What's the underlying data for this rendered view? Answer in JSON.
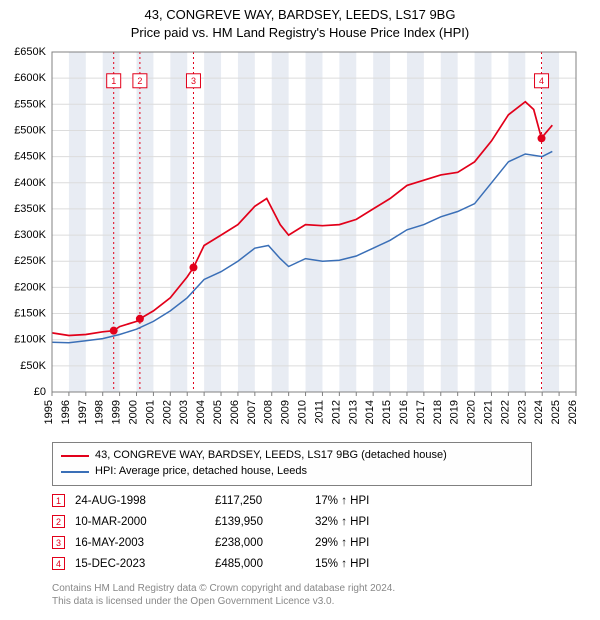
{
  "title_line1": "43, CONGREVE WAY, BARDSEY, LEEDS, LS17 9BG",
  "title_line2": "Price paid vs. HM Land Registry's House Price Index (HPI)",
  "chart": {
    "type": "line",
    "background_color": "#ffffff",
    "plot_border_color": "#808080",
    "grid_color": "#dcdcdc",
    "shade_band_color": "#e8ecf3",
    "axis_text_color": "#000000",
    "axis_fontsize": 11,
    "y": {
      "min": 0,
      "max": 650000,
      "tick_step": 50000,
      "labels": [
        "£0",
        "£50K",
        "£100K",
        "£150K",
        "£200K",
        "£250K",
        "£300K",
        "£350K",
        "£400K",
        "£450K",
        "£500K",
        "£550K",
        "£600K",
        "£650K"
      ]
    },
    "x": {
      "min": 1995,
      "max": 2026,
      "tick_step": 1,
      "labels": [
        "1995",
        "1996",
        "1997",
        "1998",
        "1999",
        "2000",
        "2001",
        "2002",
        "2003",
        "2004",
        "2005",
        "2006",
        "2007",
        "2008",
        "2009",
        "2010",
        "2011",
        "2012",
        "2013",
        "2014",
        "2015",
        "2016",
        "2017",
        "2018",
        "2019",
        "2020",
        "2021",
        "2022",
        "2023",
        "2024",
        "2025",
        "2026"
      ]
    },
    "series": [
      {
        "name": "property",
        "color": "#e2001a",
        "line_width": 1.7,
        "points": [
          [
            1995.0,
            113000
          ],
          [
            1996.0,
            108000
          ],
          [
            1997.0,
            110000
          ],
          [
            1998.0,
            115000
          ],
          [
            1998.65,
            117250
          ],
          [
            1999.0,
            125000
          ],
          [
            2000.0,
            135000
          ],
          [
            2000.2,
            139950
          ],
          [
            2001.0,
            155000
          ],
          [
            2002.0,
            180000
          ],
          [
            2003.0,
            220000
          ],
          [
            2003.37,
            238000
          ],
          [
            2004.0,
            280000
          ],
          [
            2005.0,
            300000
          ],
          [
            2006.0,
            320000
          ],
          [
            2007.0,
            355000
          ],
          [
            2007.7,
            370000
          ],
          [
            2008.5,
            320000
          ],
          [
            2009.0,
            300000
          ],
          [
            2010.0,
            320000
          ],
          [
            2011.0,
            318000
          ],
          [
            2012.0,
            320000
          ],
          [
            2013.0,
            330000
          ],
          [
            2014.0,
            350000
          ],
          [
            2015.0,
            370000
          ],
          [
            2016.0,
            395000
          ],
          [
            2017.0,
            405000
          ],
          [
            2018.0,
            415000
          ],
          [
            2019.0,
            420000
          ],
          [
            2020.0,
            440000
          ],
          [
            2021.0,
            480000
          ],
          [
            2022.0,
            530000
          ],
          [
            2023.0,
            555000
          ],
          [
            2023.5,
            540000
          ],
          [
            2023.96,
            485000
          ],
          [
            2024.2,
            495000
          ],
          [
            2024.6,
            510000
          ]
        ]
      },
      {
        "name": "hpi",
        "color": "#3a6fb7",
        "line_width": 1.5,
        "points": [
          [
            1995.0,
            95000
          ],
          [
            1996.0,
            94000
          ],
          [
            1997.0,
            98000
          ],
          [
            1998.0,
            102000
          ],
          [
            1999.0,
            110000
          ],
          [
            2000.0,
            120000
          ],
          [
            2001.0,
            135000
          ],
          [
            2002.0,
            155000
          ],
          [
            2003.0,
            180000
          ],
          [
            2004.0,
            215000
          ],
          [
            2005.0,
            230000
          ],
          [
            2006.0,
            250000
          ],
          [
            2007.0,
            275000
          ],
          [
            2007.8,
            280000
          ],
          [
            2008.5,
            255000
          ],
          [
            2009.0,
            240000
          ],
          [
            2010.0,
            255000
          ],
          [
            2011.0,
            250000
          ],
          [
            2012.0,
            252000
          ],
          [
            2013.0,
            260000
          ],
          [
            2014.0,
            275000
          ],
          [
            2015.0,
            290000
          ],
          [
            2016.0,
            310000
          ],
          [
            2017.0,
            320000
          ],
          [
            2018.0,
            335000
          ],
          [
            2019.0,
            345000
          ],
          [
            2020.0,
            360000
          ],
          [
            2021.0,
            400000
          ],
          [
            2022.0,
            440000
          ],
          [
            2023.0,
            455000
          ],
          [
            2024.0,
            450000
          ],
          [
            2024.6,
            460000
          ]
        ]
      }
    ],
    "sale_markers": [
      {
        "n": "1",
        "x": 1998.65,
        "y": 117250,
        "color": "#e2001a",
        "label_y": 595000
      },
      {
        "n": "2",
        "x": 2000.2,
        "y": 139950,
        "color": "#e2001a",
        "label_y": 595000
      },
      {
        "n": "3",
        "x": 2003.37,
        "y": 238000,
        "color": "#e2001a",
        "label_y": 595000
      },
      {
        "n": "4",
        "x": 2023.96,
        "y": 485000,
        "color": "#e2001a",
        "label_y": 595000
      }
    ],
    "marker_dash_color": "#e2001a",
    "marker_box_border": "#e2001a",
    "marker_box_fill": "#ffffff",
    "marker_box_text": "#e2001a",
    "marker_fontsize": 9
  },
  "legend": {
    "items": [
      {
        "color": "#e2001a",
        "label": "43, CONGREVE WAY, BARDSEY, LEEDS, LS17 9BG (detached house)"
      },
      {
        "color": "#3a6fb7",
        "label": "HPI: Average price, detached house, Leeds"
      }
    ]
  },
  "sales": [
    {
      "n": "1",
      "date": "24-AUG-1998",
      "price": "£117,250",
      "pct": "17% ↑ HPI",
      "color": "#e2001a"
    },
    {
      "n": "2",
      "date": "10-MAR-2000",
      "price": "£139,950",
      "pct": "32% ↑ HPI",
      "color": "#e2001a"
    },
    {
      "n": "3",
      "date": "16-MAY-2003",
      "price": "£238,000",
      "pct": "29% ↑ HPI",
      "color": "#e2001a"
    },
    {
      "n": "4",
      "date": "15-DEC-2023",
      "price": "£485,000",
      "pct": "15% ↑ HPI",
      "color": "#e2001a"
    }
  ],
  "footer_line1": "Contains HM Land Registry data © Crown copyright and database right 2024.",
  "footer_line2": "This data is licensed under the Open Government Licence v3.0."
}
